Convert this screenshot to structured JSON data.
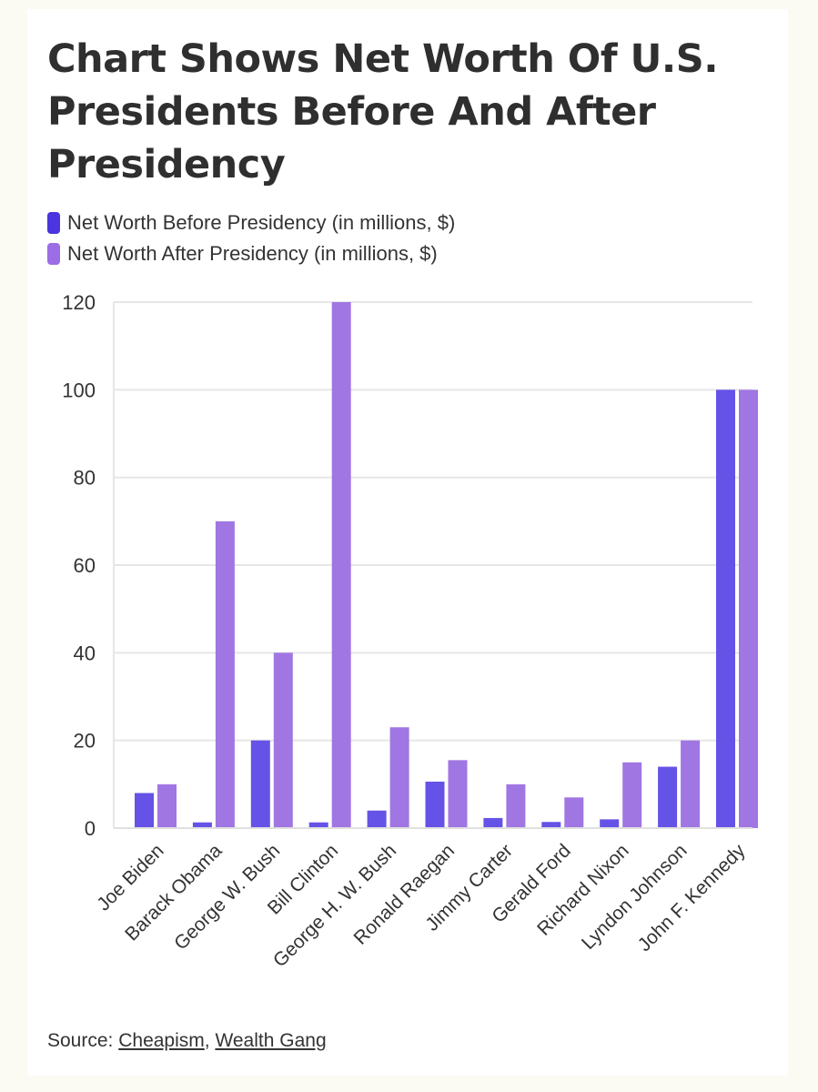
{
  "title": "Chart Shows Net Worth Of U.S. Presidents Before And After Presidency",
  "legend": [
    {
      "label": "Net Worth Before Presidency (in millions, $)",
      "color": "#4a35e0"
    },
    {
      "label": "Net Worth After Presidency (in millions, $)",
      "color": "#9b6ee6"
    }
  ],
  "source": {
    "prefix": "Source: ",
    "links": [
      "Cheapism",
      "Wealth Gang"
    ],
    "separator": ", "
  },
  "chart_data": {
    "type": "bar",
    "categories": [
      "Joe Biden",
      "Barack Obama",
      "George W. Bush",
      "Bill Clinton",
      "George H. W. Bush",
      "Ronald Raegan",
      "Jimmy Carter",
      "Gerald Ford",
      "Richard Nixon",
      "Lyndon Johnson",
      "John F. Kennedy"
    ],
    "series": [
      {
        "name": "Net Worth Before Presidency (in millions, $)",
        "color": "#6552e6",
        "values": [
          8,
          1.3,
          20,
          1.3,
          4,
          10.6,
          2.3,
          1.4,
          2,
          14,
          100
        ]
      },
      {
        "name": "Net Worth After Presidency (in millions, $)",
        "color": "#a076e3",
        "values": [
          10,
          70,
          40,
          120,
          23,
          15.5,
          10,
          7,
          15,
          20,
          100
        ]
      }
    ],
    "yticks": [
      "0",
      "20",
      "40",
      "60",
      "80",
      "100",
      "120"
    ],
    "ylim": [
      0,
      120
    ],
    "grid": true,
    "legend_position": "top-left"
  }
}
